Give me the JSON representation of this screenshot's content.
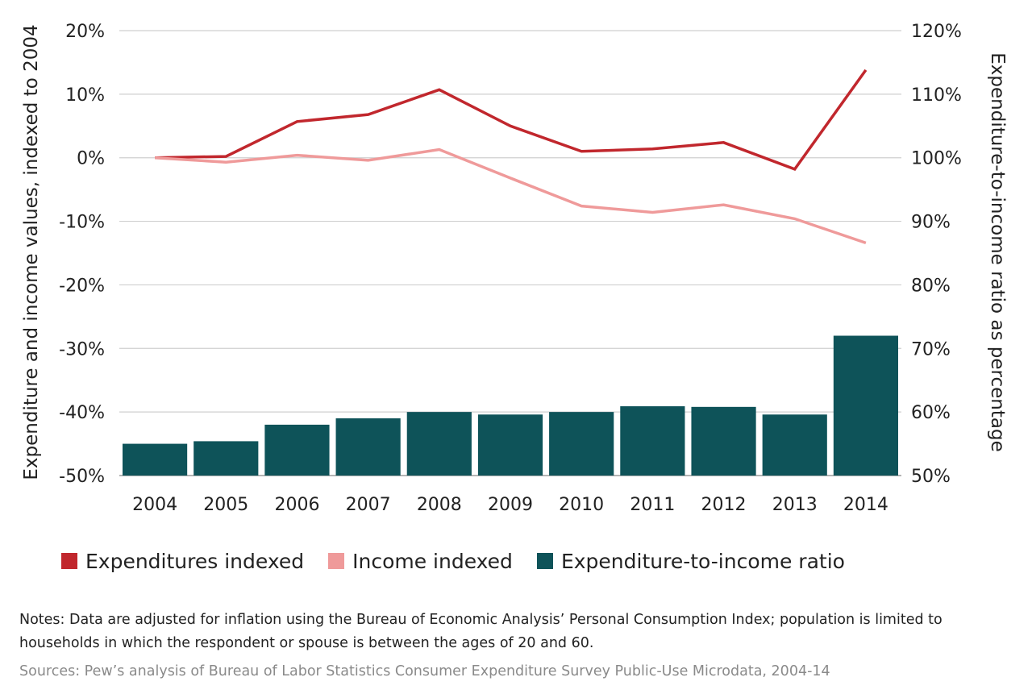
{
  "chart_data": {
    "type": "bar+line",
    "categories": [
      "2004",
      "2005",
      "2006",
      "2007",
      "2008",
      "2009",
      "2010",
      "2011",
      "2012",
      "2013",
      "2014"
    ],
    "y_left": {
      "label": "Expenditure and income values, indexed to 2004",
      "range": [
        -50,
        20
      ],
      "ticks": [
        20,
        10,
        0,
        -10,
        -20,
        -30,
        -40,
        -50
      ],
      "tick_labels": [
        "20%",
        "10%",
        "0%",
        "-10%",
        "-20%",
        "-30%",
        "-40%",
        "-50%"
      ]
    },
    "y_right": {
      "label": "Expenditure-to-income ratio as percentage",
      "range": [
        50,
        120
      ],
      "ticks": [
        120,
        110,
        100,
        90,
        80,
        70,
        60,
        50
      ],
      "tick_labels": [
        "120%",
        "110%",
        "100%",
        "90%",
        "80%",
        "70%",
        "60%",
        "50%"
      ]
    },
    "series": [
      {
        "name": "Expenditures indexed",
        "type": "line",
        "axis": "left",
        "color": "#c1272d",
        "values": [
          0,
          0.2,
          5.7,
          6.8,
          10.7,
          5.0,
          1.0,
          1.4,
          2.4,
          -1.8,
          13.8
        ]
      },
      {
        "name": "Income indexed",
        "type": "line",
        "axis": "left",
        "color": "#ef9a9a",
        "values": [
          0,
          -0.7,
          0.4,
          -0.4,
          1.3,
          -3.2,
          -7.6,
          -8.6,
          -7.4,
          -9.6,
          -13.4
        ]
      },
      {
        "name": "Expenditure-to-income ratio",
        "type": "bar",
        "axis": "right",
        "color": "#0e5359",
        "values": [
          55.0,
          55.4,
          58.0,
          59.0,
          60.0,
          59.6,
          60.0,
          60.9,
          60.8,
          59.6,
          72.0
        ]
      }
    ],
    "grid": true,
    "legend_position": "bottom"
  },
  "notes": "Notes: Data are adjusted for inflation using the Bureau of Economic Analysis’ Personal Consumption Index; population is limited to households in which the respondent or spouse is between the ages of 20 and 60.",
  "sources": "Sources: Pew’s analysis of Bureau of Labor Statistics Consumer Expenditure Survey Public-Use Microdata, 2004-14"
}
